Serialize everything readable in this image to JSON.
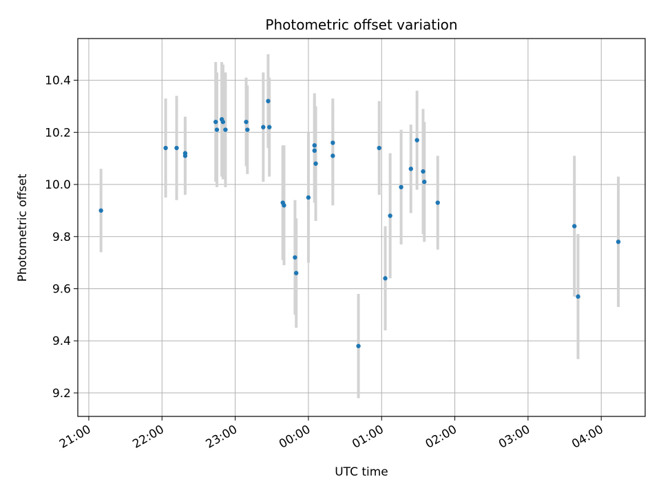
{
  "chart_data": {
    "type": "scatter",
    "title": "Photometric offset variation",
    "xlabel": "UTC time",
    "ylabel": "Photometric offset",
    "x_ticks": [
      "21:00",
      "22:00",
      "23:00",
      "00:00",
      "01:00",
      "02:00",
      "03:00",
      "04:00"
    ],
    "x_tick_hours": [
      21,
      22,
      23,
      24,
      25,
      26,
      27,
      28
    ],
    "xlim_hours": [
      20.85,
      28.6
    ],
    "y_ticks": [
      9.2,
      9.4,
      9.6,
      9.8,
      10.0,
      10.2,
      10.4
    ],
    "y_tick_labels": [
      "9.2",
      "9.4",
      "9.6",
      "9.8",
      "10.0",
      "10.2",
      "10.4"
    ],
    "ylim": [
      9.11,
      10.56
    ],
    "grid": true,
    "legend": "none",
    "colors": {
      "point": "#1f77b4",
      "errorbar": "#d3d3d3",
      "grid": "#b0b0b0"
    },
    "series": [
      {
        "points": [
          {
            "x": "21:10",
            "y": 9.9,
            "err": 0.16
          },
          {
            "x": "22:03",
            "y": 10.14,
            "err": 0.19
          },
          {
            "x": "22:12",
            "y": 10.14,
            "err": 0.2
          },
          {
            "x": "22:19",
            "y": 10.11,
            "err": 0.15
          },
          {
            "x": "22:19",
            "y": 10.12,
            "err": 0.14
          },
          {
            "x": "22:44",
            "y": 10.24,
            "err": 0.23
          },
          {
            "x": "22:45",
            "y": 10.21,
            "err": 0.22
          },
          {
            "x": "22:49",
            "y": 10.25,
            "err": 0.22
          },
          {
            "x": "22:50",
            "y": 10.24,
            "err": 0.22
          },
          {
            "x": "22:52",
            "y": 10.21,
            "err": 0.22
          },
          {
            "x": "23:09",
            "y": 10.24,
            "err": 0.17
          },
          {
            "x": "23:10",
            "y": 10.21,
            "err": 0.17
          },
          {
            "x": "23:23",
            "y": 10.22,
            "err": 0.21
          },
          {
            "x": "23:27",
            "y": 10.32,
            "err": 0.18
          },
          {
            "x": "23:28",
            "y": 10.22,
            "err": 0.19
          },
          {
            "x": "23:39",
            "y": 9.93,
            "err": 0.22
          },
          {
            "x": "23:40",
            "y": 9.92,
            "err": 0.23
          },
          {
            "x": "23:49",
            "y": 9.72,
            "err": 0.22
          },
          {
            "x": "23:50",
            "y": 9.66,
            "err": 0.21
          },
          {
            "x": "00:00",
            "y": 9.95,
            "err": 0.25
          },
          {
            "x": "00:05",
            "y": 10.15,
            "err": 0.2
          },
          {
            "x": "00:05",
            "y": 10.13,
            "err": 0.2
          },
          {
            "x": "00:06",
            "y": 10.08,
            "err": 0.22
          },
          {
            "x": "00:20",
            "y": 10.11,
            "err": 0.19
          },
          {
            "x": "00:20",
            "y": 10.16,
            "err": 0.17
          },
          {
            "x": "00:41",
            "y": 9.38,
            "err": 0.2
          },
          {
            "x": "00:58",
            "y": 10.14,
            "err": 0.18
          },
          {
            "x": "01:03",
            "y": 9.64,
            "err": 0.2
          },
          {
            "x": "01:07",
            "y": 9.88,
            "err": 0.24
          },
          {
            "x": "01:16",
            "y": 9.99,
            "err": 0.22
          },
          {
            "x": "01:24",
            "y": 10.06,
            "err": 0.17
          },
          {
            "x": "01:29",
            "y": 10.17,
            "err": 0.19
          },
          {
            "x": "01:34",
            "y": 10.05,
            "err": 0.24
          },
          {
            "x": "01:35",
            "y": 10.01,
            "err": 0.23
          },
          {
            "x": "01:46",
            "y": 9.93,
            "err": 0.18
          },
          {
            "x": "03:38",
            "y": 9.84,
            "err": 0.27
          },
          {
            "x": "03:41",
            "y": 9.57,
            "err": 0.24
          },
          {
            "x": "04:14",
            "y": 9.78,
            "err": 0.25
          }
        ]
      }
    ]
  }
}
